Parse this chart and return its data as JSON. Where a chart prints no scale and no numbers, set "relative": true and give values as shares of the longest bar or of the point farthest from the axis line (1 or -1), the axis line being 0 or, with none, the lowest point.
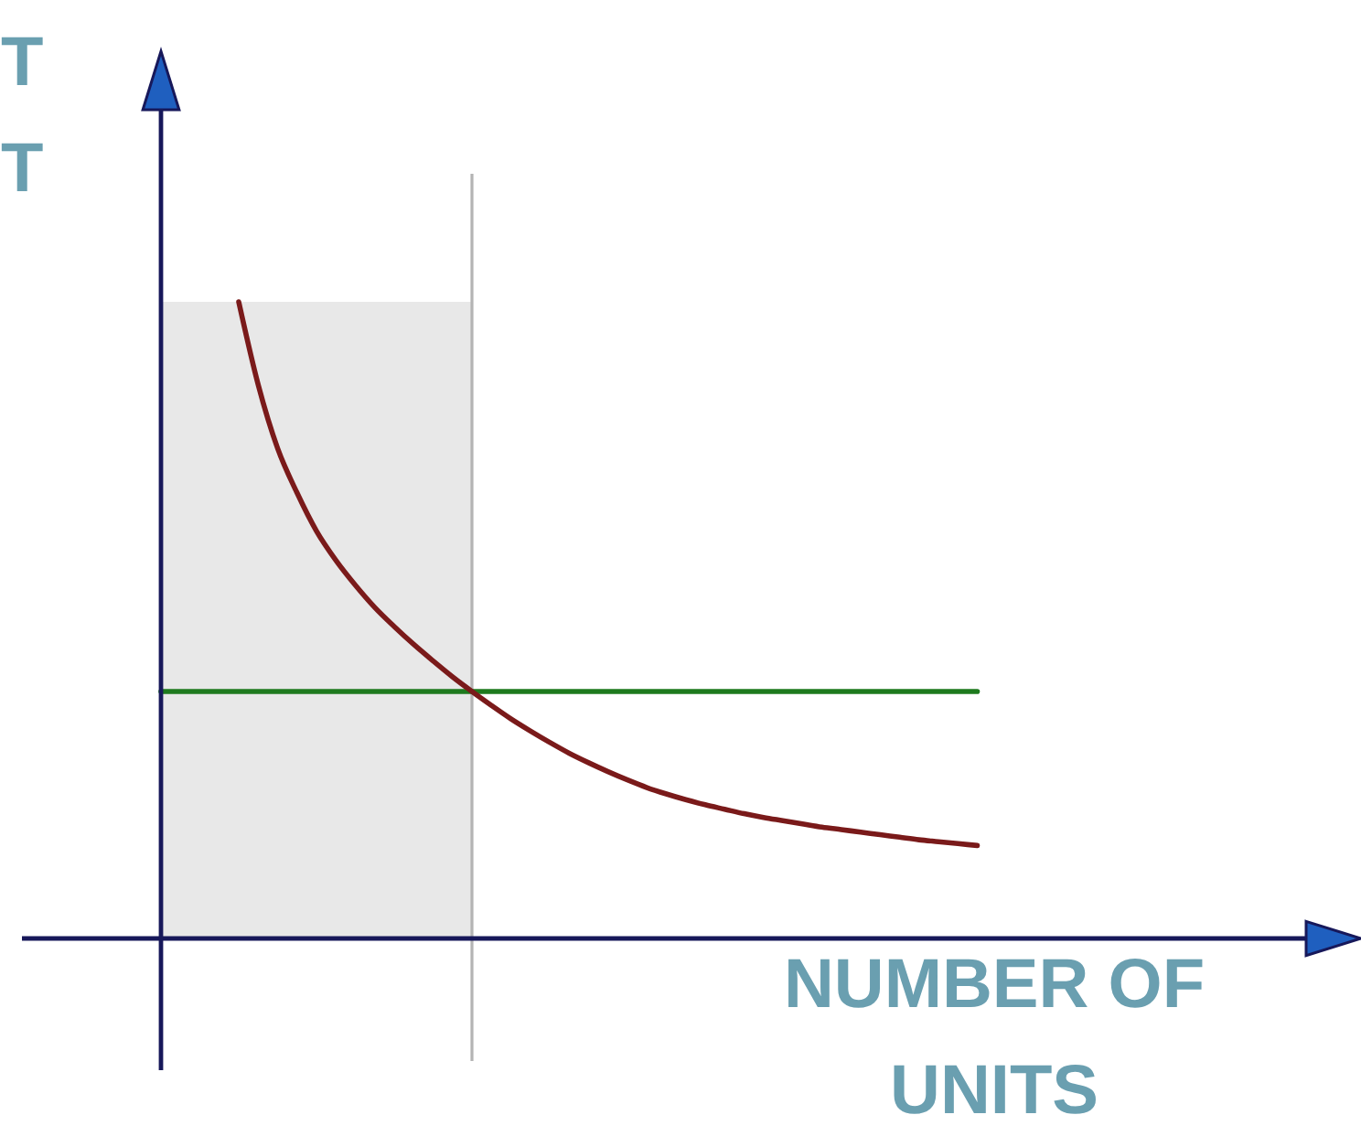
{
  "chart_data": {
    "type": "line",
    "relative": true,
    "xlabel": "NUMBER OF UNITS",
    "ylabel": "T\nT",
    "categories": [
      null,
      null,
      null,
      null,
      null,
      null,
      null,
      null,
      null,
      null,
      null,
      null,
      null,
      null,
      null,
      null,
      null,
      null,
      null,
      null,
      null,
      null,
      null,
      null,
      null,
      null,
      null,
      null,
      null,
      null,
      null,
      null,
      null,
      null,
      null,
      null,
      null,
      null,
      null,
      null,
      null,
      null,
      null
    ],
    "series": [
      {
        "type": "area",
        "color": "#e8e8e8",
        "values": [
          1,
          1,
          1,
          1,
          1,
          1,
          1,
          1,
          1,
          1,
          1,
          1,
          1,
          1,
          1,
          1,
          1,
          null,
          null,
          null,
          null,
          null,
          null,
          null,
          null,
          null,
          null,
          null,
          null,
          null,
          null,
          null,
          null,
          null,
          null,
          null,
          null,
          null,
          null,
          null,
          null,
          null,
          null
        ]
      },
      {
        "color": "#1e7a1e",
        "values": [
          0.388,
          0.388,
          0.388,
          0.388,
          0.388,
          0.388,
          0.388,
          0.388,
          0.388,
          0.388,
          0.388,
          0.388,
          0.388,
          0.388,
          0.388,
          0.388,
          0.388,
          0.388,
          0.388,
          0.388,
          0.388,
          0.388,
          0.388,
          0.388,
          0.388,
          0.388,
          0.388,
          0.388,
          0.388,
          0.388,
          0.388,
          0.388,
          0.388,
          0.388,
          0.388,
          0.388,
          0.388,
          0.388,
          0.388,
          0.388,
          0.388,
          0.388,
          0.388
        ]
      },
      {
        "color": "#7a1a1a",
        "values": [
          null,
          null,
          null,
          null,
          1,
          0.87,
          0.77,
          0.7,
          0.64,
          0.594,
          0.555,
          0.52,
          0.49,
          0.462,
          0.436,
          0.411,
          0.388,
          0.366,
          0.345,
          0.326,
          0.308,
          0.291,
          0.276,
          0.262,
          0.249,
          0.237,
          0.227,
          0.218,
          0.21,
          0.203,
          0.196,
          0.19,
          0.185,
          0.18,
          0.175,
          0.171,
          0.167,
          0.163,
          0.159,
          0.155,
          0.152,
          0.149,
          0.146
        ]
      }
    ]
  }
}
